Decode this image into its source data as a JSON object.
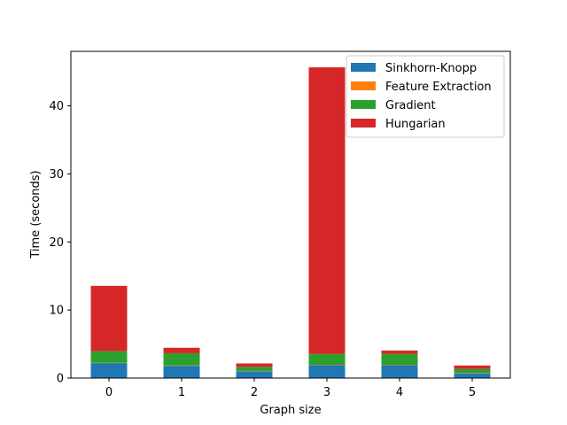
{
  "chart_data": {
    "type": "bar",
    "stacked": true,
    "title": "",
    "xlabel": "Graph size",
    "ylabel": "Time (seconds)",
    "categories": [
      "0",
      "1",
      "2",
      "3",
      "4",
      "5"
    ],
    "ylim": [
      0,
      48
    ],
    "yticks": [
      0,
      10,
      20,
      30,
      40
    ],
    "legend_position": "top-right",
    "grid": false,
    "series": [
      {
        "name": "Sinkhorn-Knopp",
        "color": "#1f77b4",
        "values": [
          2.2,
          1.8,
          1.0,
          1.9,
          1.9,
          0.7
        ]
      },
      {
        "name": "Feature Extraction",
        "color": "#ff7f0e",
        "values": [
          0.05,
          0.05,
          0.05,
          0.05,
          0.05,
          0.05
        ]
      },
      {
        "name": "Gradient",
        "color": "#2ca02c",
        "values": [
          1.7,
          1.8,
          0.6,
          1.6,
          1.6,
          0.6
        ]
      },
      {
        "name": "Hungarian",
        "color": "#d62728",
        "values": [
          9.6,
          0.8,
          0.5,
          42.1,
          0.5,
          0.5
        ]
      }
    ]
  }
}
